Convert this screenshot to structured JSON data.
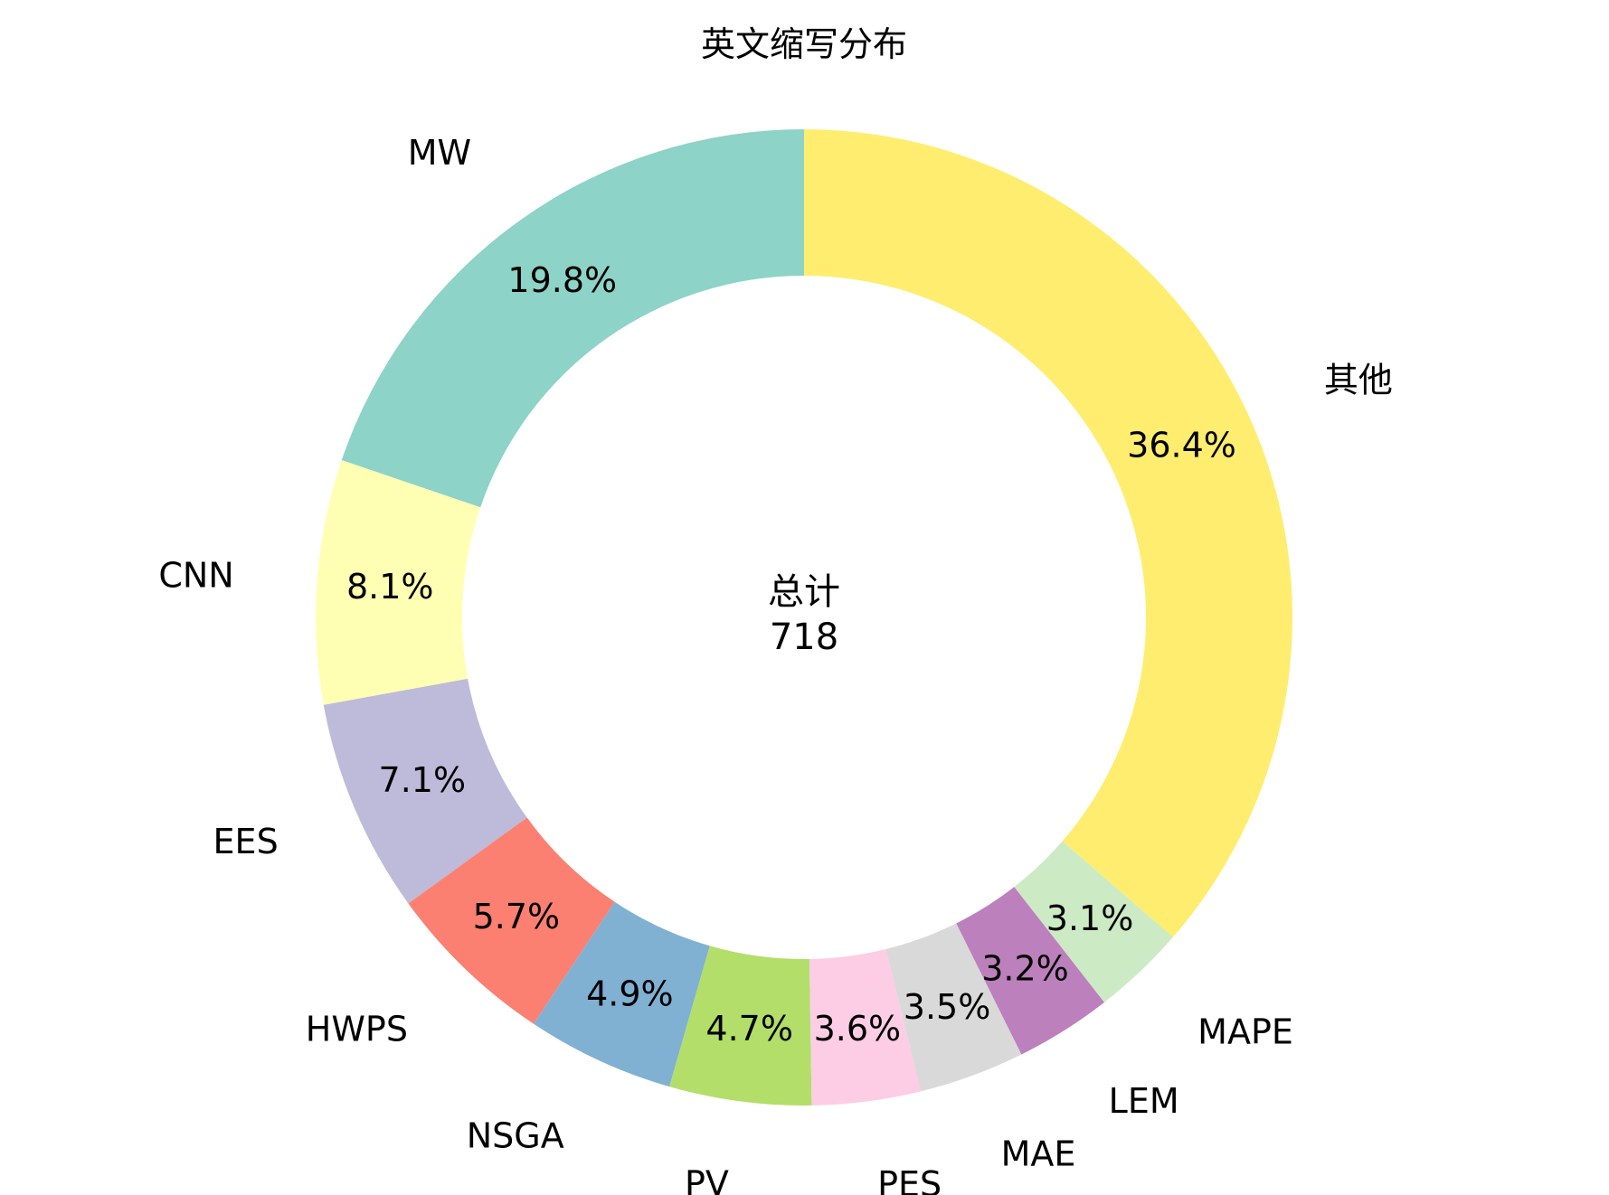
{
  "chart_data": {
    "type": "pie",
    "style": "donut",
    "title": "英文缩写分布",
    "center_label": "总计",
    "center_value": "718",
    "start_angle_deg": 90,
    "direction": "counterclockwise",
    "slices": [
      {
        "label": "MW",
        "percent_label": "19.8%",
        "value": 19.8,
        "color": "#8dd3c7"
      },
      {
        "label": "CNN",
        "percent_label": "8.1%",
        "value": 8.1,
        "color": "#ffffb3"
      },
      {
        "label": "EES",
        "percent_label": "7.1%",
        "value": 7.1,
        "color": "#bebada"
      },
      {
        "label": "HWPS",
        "percent_label": "5.7%",
        "value": 5.7,
        "color": "#fb8072"
      },
      {
        "label": "NSGA",
        "percent_label": "4.9%",
        "value": 4.9,
        "color": "#80b1d3"
      },
      {
        "label": "PV",
        "percent_label": "4.7%",
        "value": 4.7,
        "color": "#b3de69"
      },
      {
        "label": "PES",
        "percent_label": "3.6%",
        "value": 3.6,
        "color": "#fccde5"
      },
      {
        "label": "MAE",
        "percent_label": "3.5%",
        "value": 3.5,
        "color": "#d9d9d9"
      },
      {
        "label": "LEM",
        "percent_label": "3.2%",
        "value": 3.2,
        "color": "#bc80bd"
      },
      {
        "label": "MAPE",
        "percent_label": "3.1%",
        "value": 3.1,
        "color": "#ccebc5"
      },
      {
        "label": "其他",
        "percent_label": "36.4%",
        "value": 36.4,
        "color": "#ffed6f"
      }
    ]
  }
}
